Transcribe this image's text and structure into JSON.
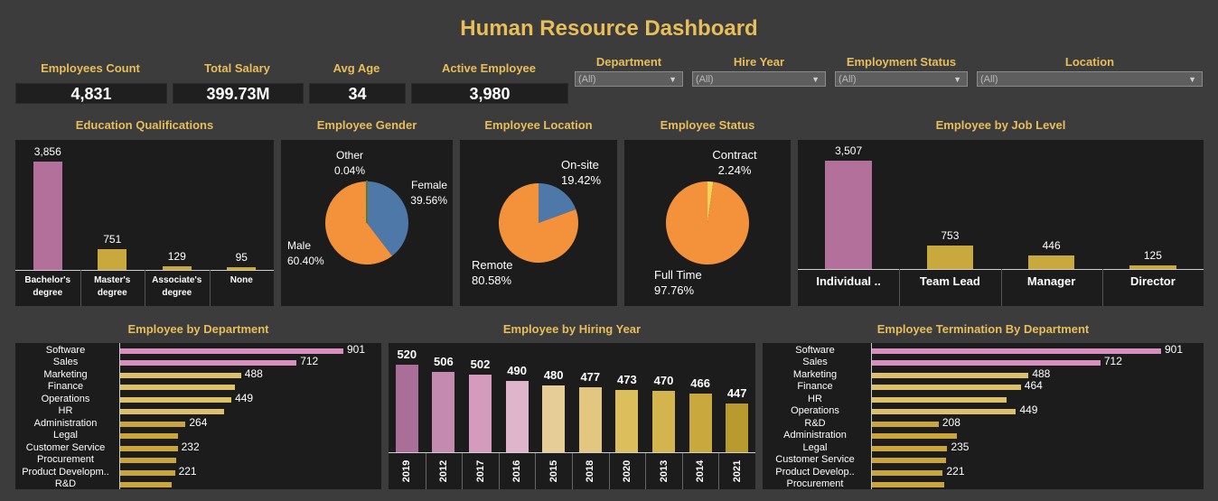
{
  "title": "Human Resource Dashboard",
  "colors": {
    "gold": "#e8be5a",
    "pink": "#b2709a",
    "bar_gold": "#c9a93e",
    "orange": "#f4923b",
    "blue": "#4e78a8"
  },
  "kpis": [
    {
      "label": "Employees Count",
      "value": "4,831"
    },
    {
      "label": "Total Salary",
      "value": "399.73M"
    },
    {
      "label": "Avg Age",
      "value": "34"
    },
    {
      "label": "Active Employee",
      "value": "3,980"
    }
  ],
  "filters": [
    {
      "label": "Department",
      "value": "(All)"
    },
    {
      "label": "Hire Year",
      "value": "(All)"
    },
    {
      "label": "Employment Status",
      "value": "(All)"
    },
    {
      "label": "Location",
      "value": "(All)"
    }
  ],
  "panels": {
    "education": "Education Qualifications",
    "gender": "Employee Gender",
    "location": "Employee Location",
    "status": "Employee Status",
    "job_level": "Employee by Job Level",
    "department": "Employee by Department",
    "hiring_year": "Employee by Hiring Year",
    "termination": "Employee Termination By Department"
  },
  "chart_data": [
    {
      "type": "bar",
      "title": "Education Qualifications",
      "categories": [
        "Bachelor's degree",
        "Master's degree",
        "Associate's degree",
        "None"
      ],
      "values": [
        3856,
        751,
        129,
        95
      ],
      "labels": [
        "3,856",
        "751",
        "129",
        "95"
      ]
    },
    {
      "type": "pie",
      "title": "Employee Gender",
      "slices": [
        {
          "name": "Female",
          "value": 39.56,
          "label": "39.56%"
        },
        {
          "name": "Male",
          "value": 60.4,
          "label": "60.40%"
        },
        {
          "name": "Other",
          "value": 0.04,
          "label": "0.04%"
        }
      ]
    },
    {
      "type": "pie",
      "title": "Employee Location",
      "slices": [
        {
          "name": "On-site",
          "value": 19.42,
          "label": "19.42%"
        },
        {
          "name": "Remote",
          "value": 80.58,
          "label": "80.58%"
        }
      ]
    },
    {
      "type": "pie",
      "title": "Employee Status",
      "slices": [
        {
          "name": "Contract",
          "value": 2.24,
          "label": "2.24%"
        },
        {
          "name": "Full Time",
          "value": 97.76,
          "label": "97.76%"
        }
      ]
    },
    {
      "type": "bar",
      "title": "Employee by Job Level",
      "categories": [
        "Individual ..",
        "Team Lead",
        "Manager",
        "Director"
      ],
      "values": [
        3507,
        753,
        446,
        125
      ],
      "labels": [
        "3,507",
        "753",
        "446",
        "125"
      ]
    },
    {
      "type": "bar",
      "orientation": "horizontal",
      "title": "Employee by Department",
      "categories": [
        "Software",
        "Sales",
        "Marketing",
        "Finance",
        "Operations",
        "HR",
        "Administration",
        "Legal",
        "Customer Service",
        "Procurement",
        "Product Developm..",
        "R&D"
      ],
      "values": [
        901,
        712,
        488,
        464,
        449,
        420,
        264,
        235,
        232,
        225,
        221,
        208
      ],
      "labels": [
        "901",
        "712",
        "488",
        "",
        "449",
        "",
        "264",
        "",
        "232",
        "",
        "221",
        ""
      ]
    },
    {
      "type": "bar",
      "title": "Employee by Hiring Year",
      "categories": [
        "2019",
        "2012",
        "2017",
        "2016",
        "2015",
        "2018",
        "2020",
        "2013",
        "2014",
        "2021"
      ],
      "values": [
        520,
        506,
        502,
        490,
        480,
        477,
        473,
        470,
        466,
        447
      ],
      "labels": [
        "520",
        "506",
        "502",
        "490",
        "480",
        "477",
        "473",
        "470",
        "466",
        "447"
      ]
    },
    {
      "type": "bar",
      "orientation": "horizontal",
      "title": "Employee Termination By Department",
      "categories": [
        "Software",
        "Sales",
        "Marketing",
        "Finance",
        "HR",
        "Operations",
        "R&D",
        "Administration",
        "Legal",
        "Customer Service",
        "Product Develop..",
        "Procurement"
      ],
      "values": [
        901,
        712,
        488,
        464,
        420,
        449,
        208,
        264,
        235,
        232,
        221,
        225
      ],
      "labels": [
        "901",
        "712",
        "488",
        "464",
        "",
        "449",
        "208",
        "",
        "235",
        "",
        "221",
        ""
      ]
    }
  ]
}
